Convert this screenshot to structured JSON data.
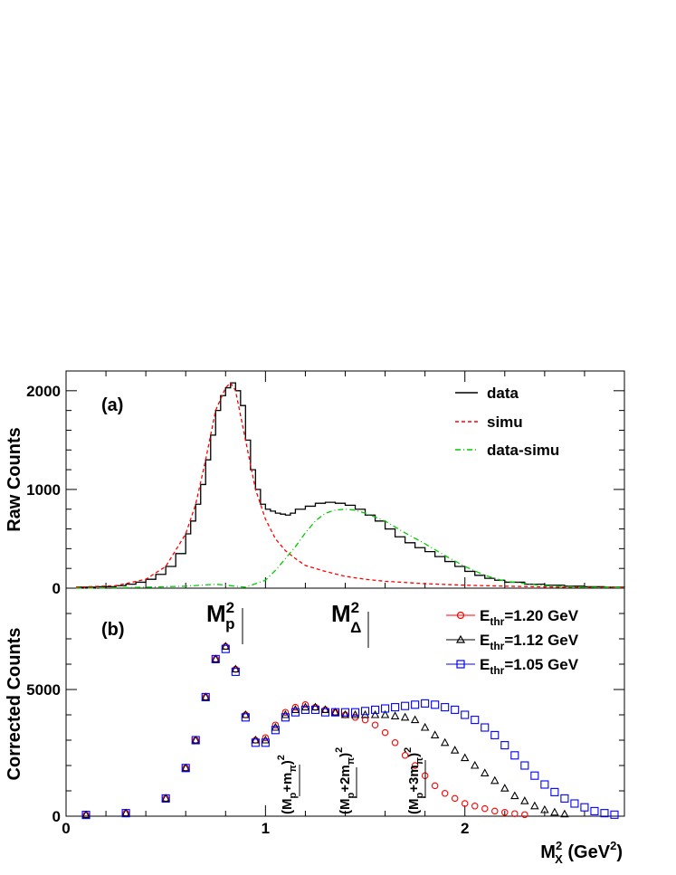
{
  "colors": {
    "data": "#000000",
    "simu": "#ff0000",
    "diff": "#00cc00",
    "e120": "#ff0000",
    "e112": "#000000",
    "e105": "#0000ff"
  },
  "chart_data": [
    {
      "type": "line",
      "panel_label": "(a)",
      "ylabel": "Raw Counts",
      "xlim": [
        0,
        2.8
      ],
      "ylim": [
        0,
        2200
      ],
      "yticks": [
        {
          "v": 0,
          "label": "0"
        },
        {
          "v": 1000,
          "label": "1000"
        },
        {
          "v": 2000,
          "label": "2000"
        }
      ],
      "legend_position": "top-right",
      "series": [
        {
          "key": "data",
          "name": "data",
          "style": "step",
          "x": [
            0.05,
            0.15,
            0.25,
            0.3,
            0.35,
            0.4,
            0.45,
            0.5,
            0.55,
            0.6,
            0.625,
            0.65,
            0.675,
            0.7,
            0.725,
            0.75,
            0.775,
            0.8,
            0.825,
            0.85,
            0.875,
            0.9,
            0.925,
            0.95,
            0.975,
            1.0,
            1.025,
            1.05,
            1.075,
            1.1,
            1.125,
            1.15,
            1.2,
            1.25,
            1.3,
            1.35,
            1.4,
            1.45,
            1.5,
            1.55,
            1.6,
            1.65,
            1.7,
            1.75,
            1.8,
            1.85,
            1.9,
            1.95,
            2.0,
            2.05,
            2.1,
            2.15,
            2.2,
            2.3,
            2.4,
            2.5,
            2.6,
            2.7,
            2.8
          ],
          "y": [
            10,
            15,
            25,
            40,
            60,
            90,
            140,
            220,
            350,
            550,
            680,
            850,
            1050,
            1300,
            1550,
            1800,
            1950,
            2030,
            2080,
            2000,
            1850,
            1500,
            1200,
            1000,
            850,
            800,
            780,
            760,
            750,
            740,
            760,
            800,
            830,
            860,
            870,
            860,
            840,
            800,
            740,
            680,
            600,
            520,
            460,
            410,
            370,
            320,
            270,
            220,
            170,
            130,
            100,
            80,
            60,
            40,
            30,
            20,
            15,
            10,
            5
          ]
        },
        {
          "key": "simu",
          "name": "simu",
          "style": "dash",
          "x": [
            0.05,
            0.25,
            0.4,
            0.5,
            0.6,
            0.65,
            0.7,
            0.75,
            0.8,
            0.825,
            0.85,
            0.9,
            0.95,
            1.0,
            1.05,
            1.1,
            1.15,
            1.2,
            1.3,
            1.4,
            1.5,
            1.6,
            1.8,
            2.0,
            2.2,
            2.5,
            2.8
          ],
          "y": [
            10,
            25,
            90,
            220,
            550,
            850,
            1300,
            1800,
            2030,
            2080,
            2000,
            1500,
            1000,
            700,
            500,
            380,
            300,
            230,
            170,
            120,
            90,
            70,
            45,
            30,
            20,
            10,
            5
          ]
        },
        {
          "key": "diff",
          "name": "data-simu",
          "style": "dashdot",
          "x": [
            0.05,
            0.3,
            0.6,
            0.75,
            0.9,
            1.0,
            1.05,
            1.1,
            1.15,
            1.2,
            1.25,
            1.3,
            1.35,
            1.4,
            1.45,
            1.5,
            1.6,
            1.7,
            1.8,
            1.9,
            2.0,
            2.1,
            2.2,
            2.4,
            2.6,
            2.8
          ],
          "y": [
            0,
            5,
            20,
            40,
            10,
            80,
            180,
            300,
            420,
            560,
            680,
            760,
            790,
            800,
            790,
            760,
            680,
            560,
            450,
            330,
            220,
            130,
            70,
            25,
            10,
            5
          ]
        }
      ]
    },
    {
      "type": "scatter",
      "panel_label": "(b)",
      "ylabel": "Corrected Counts",
      "xlabel": "M",
      "xlabel_sub": "X",
      "xlabel_sup": "2",
      "xlabel_units": " (GeV",
      "xlabel_units_sup": "2",
      "xlabel_units_end": ")",
      "xlim": [
        0,
        2.8
      ],
      "ylim": [
        0,
        9000
      ],
      "xticks": [
        {
          "v": 0,
          "label": "0"
        },
        {
          "v": 1,
          "label": "1"
        },
        {
          "v": 2,
          "label": "2"
        }
      ],
      "yticks": [
        {
          "v": 0,
          "label": "0"
        },
        {
          "v": 5000,
          "label": "5000"
        }
      ],
      "legend_position": "top-right",
      "series": [
        {
          "key": "e120",
          "name_main": "E",
          "name_sub": "thr",
          "name_rest": "=1.20 GeV",
          "marker": "circle",
          "x": [
            0.1,
            0.3,
            0.5,
            0.6,
            0.65,
            0.7,
            0.75,
            0.8,
            0.85,
            0.9,
            0.95,
            1.0,
            1.05,
            1.1,
            1.15,
            1.2,
            1.25,
            1.3,
            1.35,
            1.4,
            1.45,
            1.5,
            1.55,
            1.6,
            1.65,
            1.7,
            1.75,
            1.8,
            1.85,
            1.9,
            1.95,
            2.0,
            2.05,
            2.1,
            2.15,
            2.2,
            2.25,
            2.3
          ],
          "y": [
            50,
            120,
            700,
            1900,
            3000,
            4700,
            6200,
            6700,
            5800,
            4000,
            3000,
            3100,
            3600,
            4100,
            4300,
            4400,
            4300,
            4200,
            4100,
            4000,
            3900,
            3800,
            3600,
            3300,
            2900,
            2400,
            2000,
            1600,
            1200,
            900,
            700,
            500,
            400,
            300,
            200,
            150,
            100,
            60
          ]
        },
        {
          "key": "e112",
          "name_main": "E",
          "name_sub": "thr",
          "name_rest": "=1.12 GeV",
          "marker": "triangle",
          "x": [
            0.1,
            0.3,
            0.5,
            0.6,
            0.65,
            0.7,
            0.75,
            0.8,
            0.85,
            0.9,
            0.95,
            1.0,
            1.05,
            1.1,
            1.15,
            1.2,
            1.25,
            1.3,
            1.35,
            1.4,
            1.45,
            1.5,
            1.55,
            1.6,
            1.65,
            1.7,
            1.75,
            1.8,
            1.85,
            1.9,
            1.95,
            2.0,
            2.05,
            2.1,
            2.15,
            2.2,
            2.25,
            2.3,
            2.35,
            2.4,
            2.45,
            2.5
          ],
          "y": [
            50,
            120,
            700,
            1900,
            3000,
            4700,
            6200,
            6700,
            5800,
            4000,
            3000,
            3000,
            3500,
            4000,
            4200,
            4300,
            4300,
            4200,
            4100,
            4000,
            4000,
            4000,
            4000,
            4000,
            3950,
            3900,
            3800,
            3500,
            3200,
            2900,
            2600,
            2300,
            2000,
            1700,
            1400,
            1100,
            800,
            600,
            400,
            250,
            150,
            80
          ]
        },
        {
          "key": "e105",
          "name_main": "E",
          "name_sub": "thr",
          "name_rest": "=1.05 GeV",
          "marker": "square",
          "x": [
            0.1,
            0.3,
            0.5,
            0.6,
            0.65,
            0.7,
            0.75,
            0.8,
            0.85,
            0.9,
            0.95,
            1.0,
            1.05,
            1.1,
            1.15,
            1.2,
            1.25,
            1.3,
            1.35,
            1.4,
            1.45,
            1.5,
            1.55,
            1.6,
            1.65,
            1.7,
            1.75,
            1.8,
            1.85,
            1.9,
            1.95,
            2.0,
            2.05,
            2.1,
            2.15,
            2.2,
            2.25,
            2.3,
            2.35,
            2.4,
            2.45,
            2.5,
            2.55,
            2.6,
            2.65,
            2.7,
            2.75
          ],
          "y": [
            50,
            120,
            700,
            1900,
            3000,
            4700,
            6200,
            6600,
            5700,
            3900,
            2900,
            2900,
            3400,
            3900,
            4100,
            4200,
            4200,
            4100,
            4100,
            4100,
            4100,
            4150,
            4200,
            4250,
            4300,
            4350,
            4400,
            4450,
            4400,
            4300,
            4200,
            4000,
            3800,
            3500,
            3200,
            2800,
            2400,
            2000,
            1600,
            1250,
            950,
            700,
            500,
            350,
            200,
            120,
            60
          ]
        }
      ],
      "annotations": [
        {
          "id": "mp",
          "base": "M",
          "sub": "p",
          "sup": "2",
          "x": 0.88
        },
        {
          "id": "mdelta",
          "base": "M",
          "sub": "Δ",
          "sup": "2",
          "x": 1.5
        },
        {
          "id": "thr1",
          "lead": "(M",
          "sub": "p",
          "mid": "+m",
          "sub2": "π",
          "tail": ")",
          "sup": "2",
          "x": 1.17
        },
        {
          "id": "thr2",
          "lead": "(M",
          "sub": "p",
          "mid": "+2m",
          "sub2": "π",
          "tail": ")",
          "sup": "2",
          "x": 1.47
        },
        {
          "id": "thr3",
          "lead": "(M",
          "sub": "p",
          "mid": "+3m",
          "sub2": "π",
          "tail": ")",
          "sup": "2",
          "x": 1.81
        }
      ]
    }
  ]
}
